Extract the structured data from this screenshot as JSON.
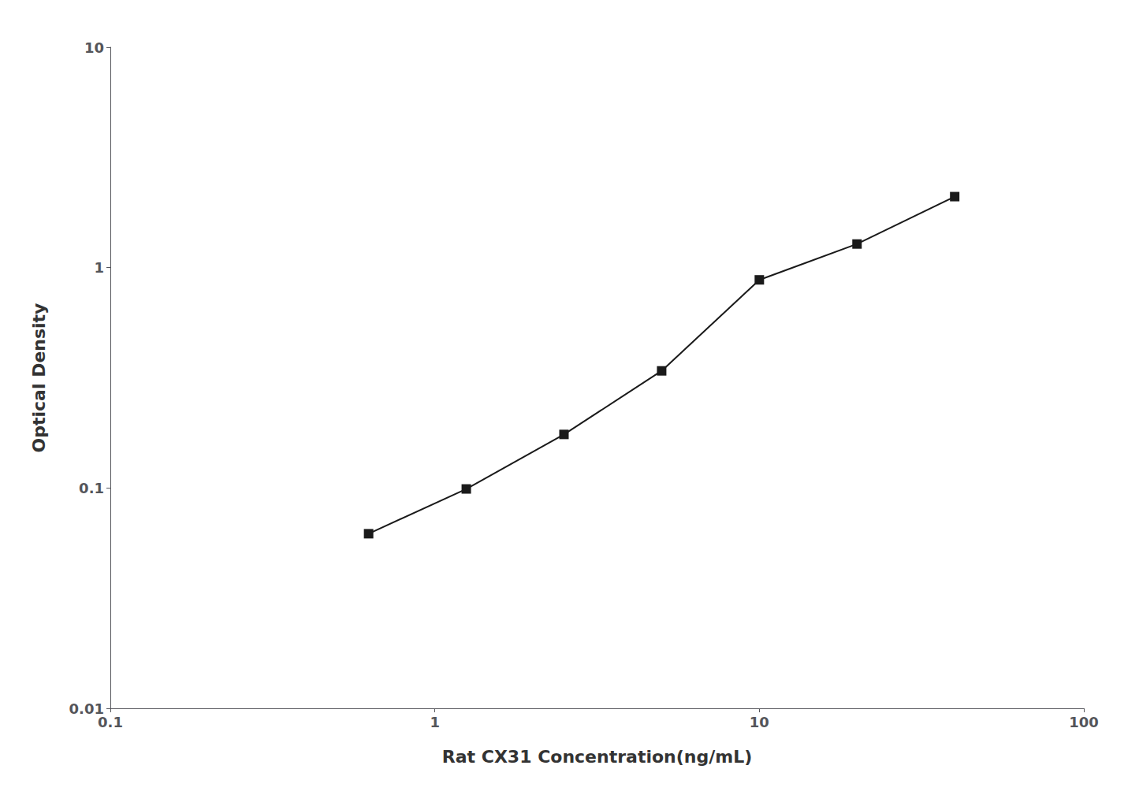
{
  "chart_data": {
    "type": "line",
    "xlabel": "Rat CX31 Concentration(ng/mL)",
    "ylabel": "Optical Density",
    "x": [
      0.625,
      1.25,
      2.5,
      5.0,
      10.0,
      20.0,
      40.0
    ],
    "values": [
      0.062,
      0.099,
      0.175,
      0.34,
      0.88,
      1.28,
      2.1
    ],
    "xlim": [
      0.1,
      100
    ],
    "ylim": [
      0.01,
      10
    ],
    "xticks": [
      0.1,
      1,
      10,
      100
    ],
    "yticks": [
      0.01,
      0.1,
      1,
      10
    ],
    "log": true,
    "grid": false,
    "color": "#1a1a1a",
    "marker": "square"
  }
}
